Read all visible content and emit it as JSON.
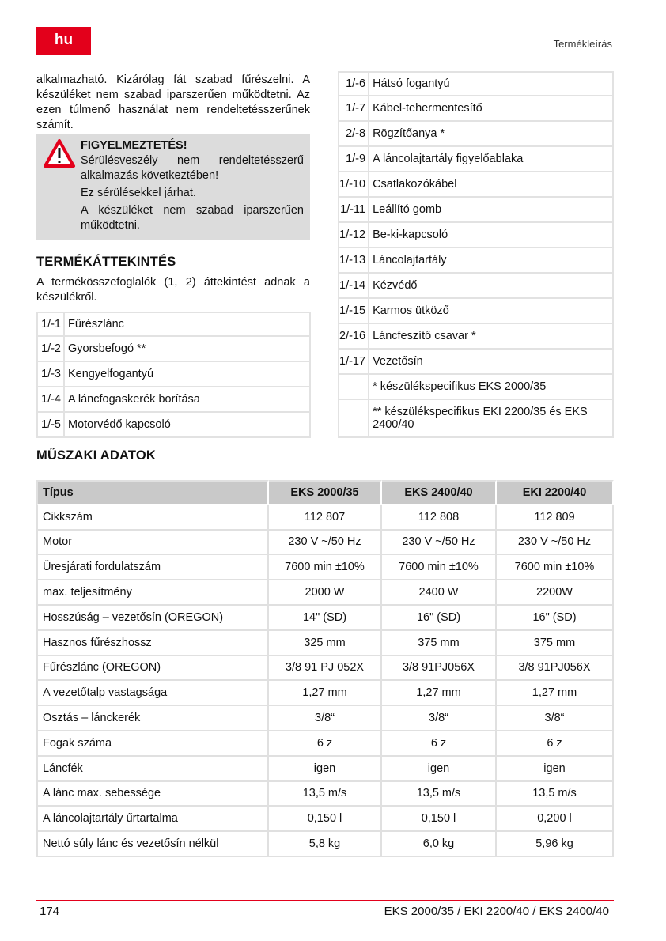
{
  "header": {
    "lang": "hu",
    "section": "Termékleírás"
  },
  "intro": "alkalmazható. Kizárólag fát szabad fűrészelni. A készüléket nem szabad iparszerűen működtetni. Az ezen túlmenő használat nem rendeltetésszerűnek számít.",
  "warning": {
    "icon": "warning-triangle-icon",
    "title": "FIGYELMEZTETÉS!",
    "lines": [
      "Sérülésveszély nem rendeltetésszerű alkalmazás következtében!",
      "Ez sérülésekkel járhat.",
      "A készüléket nem szabad iparszerűen működtetni."
    ]
  },
  "overview": {
    "title": "TERMÉKÁTTEKINTÉS",
    "text": "A termékösszefoglalók (1, 2) áttekintést adnak a készülékről.",
    "left": [
      [
        "1/-1",
        "Fűrészlánc"
      ],
      [
        "1/-2",
        "Gyorsbefogó **"
      ],
      [
        "1/-3",
        "Kengyelfogantyú"
      ],
      [
        "1/-4",
        "A láncfogaskerék borítása"
      ],
      [
        "1/-5",
        "Motorvédő kapcsoló"
      ]
    ],
    "right": [
      [
        "1/-6",
        "Hátsó fogantyú"
      ],
      [
        "1/-7",
        "Kábel-tehermentesítő"
      ],
      [
        "2/-8",
        "Rögzítőanya *"
      ],
      [
        "1/-9",
        "A láncolajtartály figyelőablaka"
      ],
      [
        "1/-10",
        "Csatlakozókábel"
      ],
      [
        "1/-11",
        "Leállító gomb"
      ],
      [
        "1/-12",
        "Be-ki-kapcsoló"
      ],
      [
        "1/-13",
        "Láncolajtartály"
      ],
      [
        "1/-14",
        "Kézvédő"
      ],
      [
        "1/-15",
        "Karmos ütköző"
      ],
      [
        "2/-16",
        "Láncfeszítő csavar *"
      ],
      [
        "1/-17",
        "Vezetősín"
      ],
      [
        "",
        "* készülékspecifikus EKS 2000/35"
      ],
      [
        "",
        "** készülékspecifikus EKI 2200/35 és EKS 2400/40"
      ]
    ]
  },
  "specs": {
    "title": "MŰSZAKI ADATOK",
    "headers": [
      "Típus",
      "EKS 2000/35",
      "EKS 2400/40",
      "EKI 2200/40"
    ],
    "rows": [
      [
        "Cikkszám",
        "112 807",
        "112 808",
        "112 809"
      ],
      [
        "Motor",
        "230 V ~/50 Hz",
        "230 V ~/50 Hz",
        "230 V ~/50 Hz"
      ],
      [
        "Üresjárati fordulatszám",
        "7600 min ±10%",
        "7600 min ±10%",
        "7600 min ±10%"
      ],
      [
        "max. teljesítmény",
        "2000 W",
        "2400 W",
        "2200W"
      ],
      [
        "Hosszúság – vezetősín (OREGON)",
        "14\" (SD)",
        "16\" (SD)",
        "16\" (SD)"
      ],
      [
        "Hasznos fűrészhossz",
        "325 mm",
        "375 mm",
        "375 mm"
      ],
      [
        "Fűrészlánc (OREGON)",
        "3/8 91 PJ 052X",
        "3/8 91PJ056X",
        "3/8 91PJ056X"
      ],
      [
        "A vezetőtalp vastagsága",
        "1,27 mm",
        "1,27 mm",
        "1,27 mm"
      ],
      [
        "Osztás – lánckerék",
        "3/8“",
        "3/8“",
        "3/8“"
      ],
      [
        "Fogak száma",
        "6 z",
        "6 z",
        "6 z"
      ],
      [
        "Láncfék",
        "igen",
        "igen",
        "igen"
      ],
      [
        "A lánc max. sebessége",
        "13,5 m/s",
        "13,5 m/s",
        "13,5 m/s"
      ],
      [
        "A láncolajtartály űrtartalma",
        "0,150 l",
        "0,150 l",
        "0,200 l"
      ],
      [
        "Nettó súly lánc és vezetősín nélkül",
        "5,8 kg",
        "6,0 kg",
        "5,96 kg"
      ]
    ]
  },
  "footer": {
    "page": "174",
    "models": "EKS 2000/35 / EKI 2200/40 / EKS 2400/40"
  }
}
